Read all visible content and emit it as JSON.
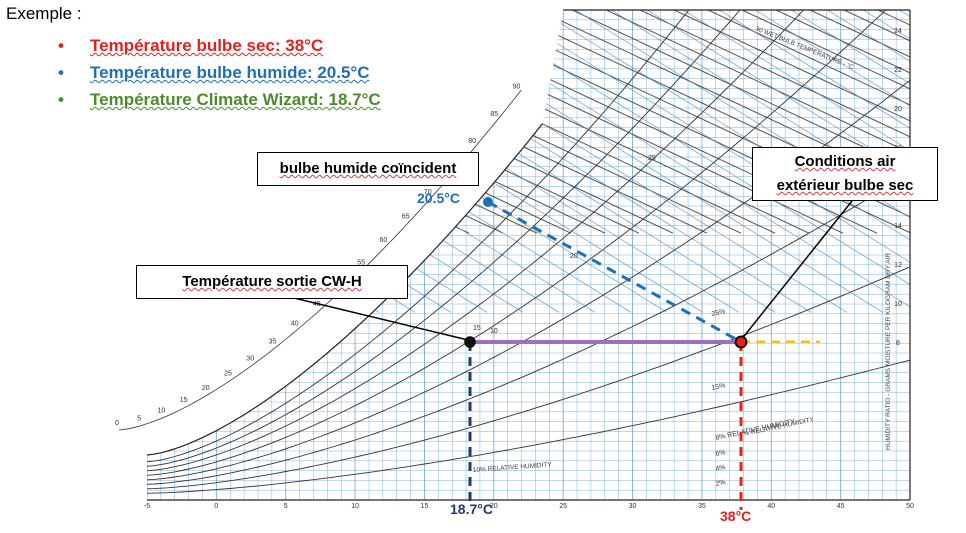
{
  "title": "Exemple :",
  "bullets": [
    {
      "text": "Température bulbe sec:   38°C",
      "color": "#e8201c"
    },
    {
      "text": "Température bulbe humide:  20.5°C",
      "color": "#1f6fb4"
    },
    {
      "text": "Température Climate Wizard: 18.7°C",
      "color": "#4e8a2e"
    }
  ],
  "callouts": {
    "wet_bulb": "bulbe humide coïncident",
    "outdoor_line1": "Conditions air",
    "outdoor_line2": "extérieur bulbe sec",
    "outlet": "Température sortie CW-H"
  },
  "value_labels": {
    "wet_bulb": "20.5°C",
    "cw_temp": "18.7°C",
    "dry_bulb": "38°C"
  },
  "colors": {
    "red": "#e8201c",
    "blue": "#1f6fb4",
    "navy": "#1f3b6e",
    "green": "#4e8a2e",
    "purple": "#9b6fc4",
    "yellow": "#f2c01c",
    "grid_blue": "#4a90c8"
  },
  "chart_data": {
    "type": "psychrometric",
    "x_axis_ticks": [
      "-5",
      "0",
      "5",
      "10",
      "15",
      "20",
      "25",
      "30",
      "35",
      "40",
      "45",
      "50"
    ],
    "y_axis_ticks": [
      "8",
      "10",
      "12",
      "14",
      "16",
      "18",
      "20",
      "22",
      "24"
    ],
    "enthalpy_ticks": [
      "0",
      "5",
      "10",
      "15",
      "20",
      "25",
      "30",
      "35",
      "40",
      "45",
      "50",
      "55",
      "60",
      "65",
      "70",
      "75",
      "80",
      "85",
      "90"
    ],
    "wet_bulb_ticks": [
      "10",
      "15",
      "20",
      "25"
    ],
    "rh_labels": [
      "2%",
      "4%",
      "6%",
      "8% RELATIVE HUMIDITY",
      "15%",
      "25%"
    ],
    "axis_titles": {
      "y": "HUMIDITY RATIO - GRAMS MOISTURE PER KILOGRAM DRY AIR",
      "wet_bulb": "30 WET BULB TEMPERATURE - °C",
      "rh_bottom": "10% RELATIVE HUMIDITY",
      "rh_mid": "% RELATIVE HUMIDITY"
    },
    "points": {
      "outdoor": {
        "dry_bulb": 38,
        "humidity_ratio": 9
      },
      "wet_bulb": {
        "temp": 20.5
      },
      "outlet": {
        "dry_bulb": 18.7,
        "humidity_ratio": 9
      }
    }
  }
}
